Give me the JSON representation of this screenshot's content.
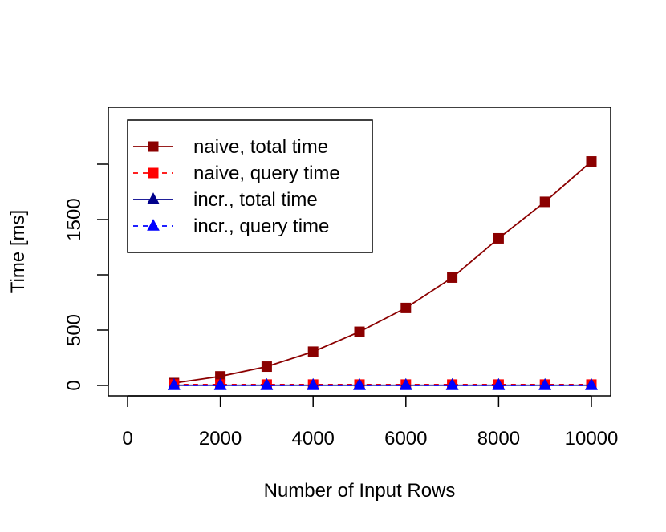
{
  "chart_data": {
    "type": "line",
    "xlabel": "Number of Input Rows",
    "ylabel": "Time [ms]",
    "xlim": [
      -200,
      10400
    ],
    "ylim": [
      -90,
      2500
    ],
    "x_ticks": [
      0,
      2000,
      4000,
      6000,
      8000,
      10000
    ],
    "y_ticks": [
      0,
      500,
      1000,
      1500,
      2000
    ],
    "y_tick_labels": [
      "0",
      "500",
      "",
      "1500",
      ""
    ],
    "x": [
      1000,
      2000,
      3000,
      4000,
      5000,
      6000,
      7000,
      8000,
      9000,
      10000
    ],
    "legend_position": "top-left",
    "series": [
      {
        "name": "naive, total time",
        "color": "#8B0000",
        "line": "solid",
        "marker": "square",
        "values": [
          22,
          82,
          170,
          305,
          485,
          700,
          975,
          1330,
          1660,
          2025
        ]
      },
      {
        "name": "naive, query time",
        "color": "#FF0000",
        "line": "dashed",
        "marker": "square",
        "values": [
          8,
          8,
          8,
          8,
          8,
          8,
          8,
          8,
          8,
          8
        ]
      },
      {
        "name": "incr., total time",
        "color": "#00008B",
        "line": "solid",
        "marker": "triangle",
        "values": [
          2,
          2,
          2,
          2,
          2,
          2,
          2,
          2,
          2,
          2
        ]
      },
      {
        "name": "incr., query time",
        "color": "#0000FF",
        "line": "dashed",
        "marker": "triangle",
        "values": [
          0,
          0,
          0,
          0,
          0,
          0,
          0,
          0,
          0,
          0
        ]
      }
    ]
  }
}
